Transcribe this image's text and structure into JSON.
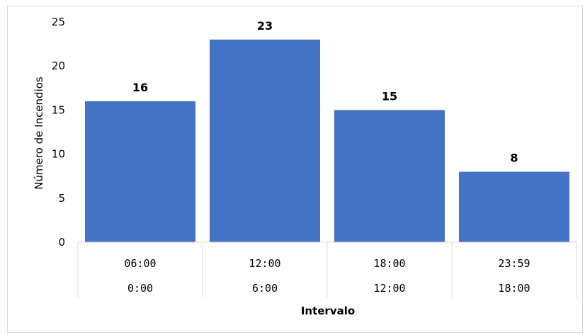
{
  "chart_data": {
    "type": "bar",
    "categories": [
      {
        "top": "06:00",
        "bottom": "0:00"
      },
      {
        "top": "12:00",
        "bottom": "6:00"
      },
      {
        "top": "18:00",
        "bottom": "12:00"
      },
      {
        "top": "23:59",
        "bottom": "18:00"
      }
    ],
    "values": [
      16,
      23,
      15,
      8
    ],
    "data_labels": [
      "16",
      "23",
      "15",
      "8"
    ],
    "xlabel": "Intervalo",
    "ylabel": "Número de Incendios",
    "ylim": [
      0,
      25
    ],
    "yticks": [
      0,
      5,
      10,
      15,
      20,
      25
    ],
    "grid": false,
    "bar_color": "#4472c4"
  }
}
